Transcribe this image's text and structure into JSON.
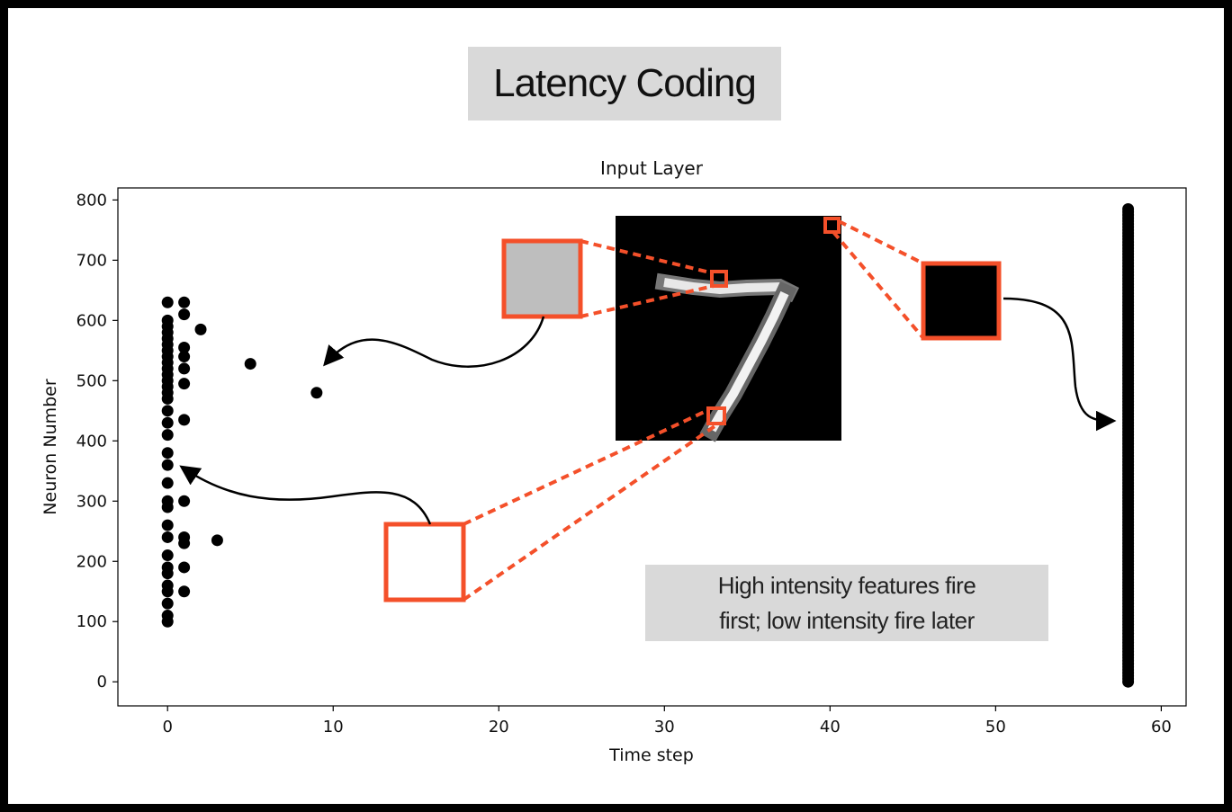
{
  "heading": "Latency Coding",
  "note": {
    "line1": "High intensity features fire",
    "line2": "first; low intensity fire later"
  },
  "colors": {
    "highlight": "#f4502a",
    "gray_pixel": "#bebebe",
    "spike": "#000000"
  },
  "chart_data": {
    "type": "scatter",
    "title": "Input Layer",
    "xlabel": "Time step",
    "ylabel": "Neuron Number",
    "xlim": [
      -3,
      61.5
    ],
    "ylim": [
      -40,
      820
    ],
    "xticks": [
      0,
      10,
      20,
      30,
      40,
      50,
      60
    ],
    "yticks": [
      0,
      100,
      200,
      300,
      400,
      500,
      600,
      700,
      800
    ],
    "grid": false,
    "series": [
      {
        "points": [
          [
            0,
            100
          ],
          [
            0,
            110
          ],
          [
            0,
            130
          ],
          [
            0,
            150
          ],
          [
            0,
            160
          ],
          [
            0,
            180
          ],
          [
            0,
            190
          ],
          [
            0,
            210
          ],
          [
            0,
            240
          ],
          [
            0,
            260
          ],
          [
            0,
            290
          ],
          [
            0,
            300
          ],
          [
            0,
            330
          ],
          [
            0,
            360
          ],
          [
            0,
            380
          ],
          [
            0,
            410
          ],
          [
            0,
            430
          ],
          [
            0,
            450
          ],
          [
            0,
            470
          ],
          [
            0,
            480
          ],
          [
            0,
            490
          ],
          [
            0,
            500
          ],
          [
            0,
            510
          ],
          [
            0,
            520
          ],
          [
            0,
            530
          ],
          [
            0,
            540
          ],
          [
            0,
            550
          ],
          [
            0,
            560
          ],
          [
            0,
            570
          ],
          [
            0,
            580
          ],
          [
            0,
            590
          ],
          [
            0,
            600
          ],
          [
            0,
            630
          ],
          [
            1,
            150
          ],
          [
            1,
            190
          ],
          [
            1,
            230
          ],
          [
            1,
            240
          ],
          [
            1,
            300
          ],
          [
            1,
            435
          ],
          [
            1,
            495
          ],
          [
            1,
            520
          ],
          [
            1,
            540
          ],
          [
            1,
            555
          ],
          [
            1,
            610
          ],
          [
            1,
            630
          ],
          [
            2,
            585
          ],
          [
            3,
            235
          ],
          [
            5,
            528
          ],
          [
            9,
            480
          ]
        ],
        "column": {
          "x": 58,
          "y_from": 0,
          "y_to": 785
        }
      }
    ]
  }
}
